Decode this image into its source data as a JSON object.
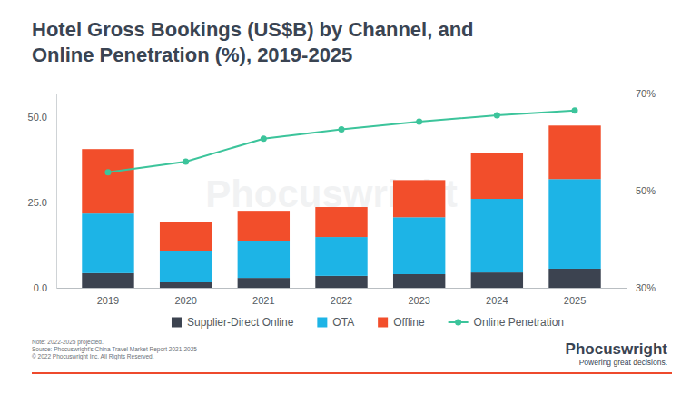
{
  "chart_data": {
    "type": "bar",
    "stacked": true,
    "title": "Hotel Gross Bookings (US$B) by Channel, and Online Penetration (%), 2019-2025",
    "categories": [
      "2019",
      "2020",
      "2021",
      "2022",
      "2023",
      "2024",
      "2025"
    ],
    "series": [
      {
        "name": "Supplier-Direct Online",
        "color": "#3c4350",
        "values": [
          4.3,
          1.6,
          2.9,
          3.5,
          4.0,
          4.5,
          5.6
        ]
      },
      {
        "name": "OTA",
        "color": "#1db4e6",
        "values": [
          17.5,
          9.3,
          10.9,
          11.4,
          16.7,
          21.6,
          26.3
        ]
      },
      {
        "name": "Offline",
        "color": "#f24e2b",
        "values": [
          18.9,
          8.5,
          8.8,
          8.8,
          10.9,
          13.5,
          15.7
        ]
      },
      {
        "name": "Online Penetration",
        "color": "#3cc49b",
        "type": "line",
        "axis": "y2",
        "marker": "circle",
        "values": [
          53.8,
          56.0,
          60.7,
          62.6,
          64.2,
          65.5,
          66.5
        ]
      }
    ],
    "ylim": [
      0,
      57
    ],
    "yticks": [
      {
        "value": 0,
        "label": "0.0"
      },
      {
        "value": 25,
        "label": "25.0"
      },
      {
        "value": 50,
        "label": "50.0"
      }
    ],
    "y2lim": [
      30,
      70
    ],
    "y2ticks": [
      {
        "value": 30,
        "label": "30%"
      },
      {
        "value": 50,
        "label": "50%"
      },
      {
        "value": 70,
        "label": "70%"
      }
    ],
    "grid": false,
    "legend": "bottom",
    "notes": [
      "Note: 2022-2025 projected.",
      "Source: Phocuswright's China Travel Market Report 2021-2025",
      "© 2022 Phocuswright Inc. All Rights Reserved."
    ],
    "watermark": "Phocuswright",
    "brand": "Phocuswright",
    "tagline": "Powering great decisions."
  }
}
